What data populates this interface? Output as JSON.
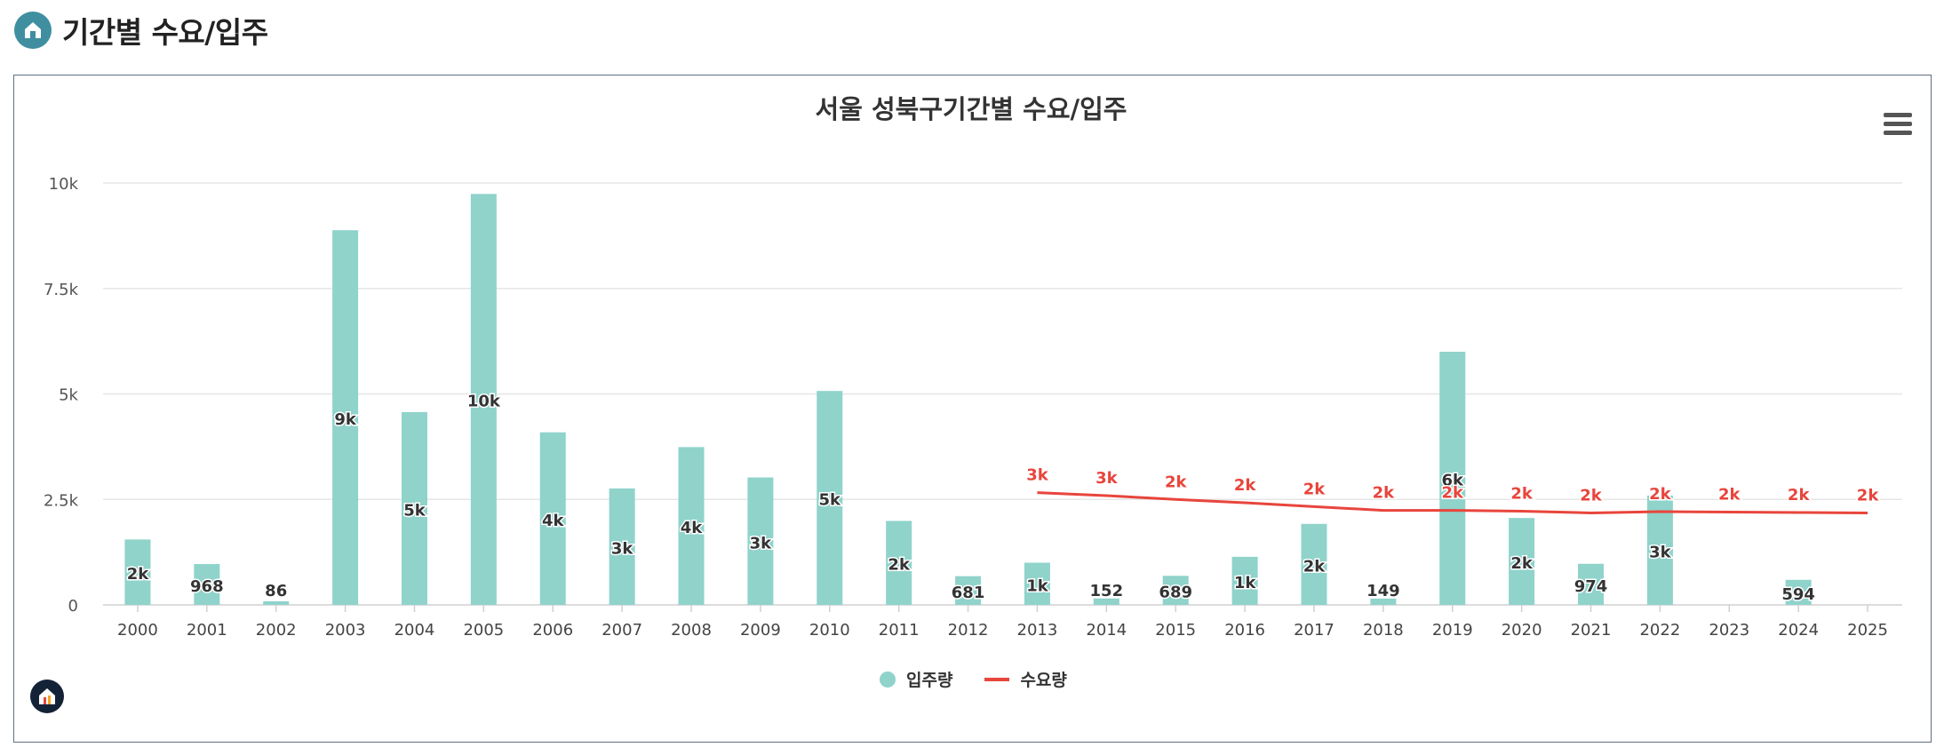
{
  "header": {
    "title": "기간별 수요/입주",
    "icon": "home-icon"
  },
  "menu": {
    "icon": "hamburger-menu-icon"
  },
  "brand": {
    "icon": "brand-logo-icon"
  },
  "colors": {
    "supply": "#8fd3cb",
    "demand": "#e8453c",
    "grid": "#e6e6e6",
    "axis": "#d0d0d0"
  },
  "chart_data": {
    "type": "bar",
    "title": "서울 성북구기간별 수요/입주",
    "categories": [
      "2000",
      "2001",
      "2002",
      "2003",
      "2004",
      "2005",
      "2006",
      "2007",
      "2008",
      "2009",
      "2010",
      "2011",
      "2012",
      "2013",
      "2014",
      "2015",
      "2016",
      "2017",
      "2018",
      "2019",
      "2020",
      "2021",
      "2022",
      "2023",
      "2024",
      "2025"
    ],
    "yticks": [
      "0",
      "2.5k",
      "5k",
      "7.5k",
      "10k"
    ],
    "ylim": [
      0,
      10000
    ],
    "grid": true,
    "legend_position": "bottom-center",
    "series": [
      {
        "name": "입주량",
        "type": "bar",
        "values": [
          1550,
          968,
          86,
          8880,
          4570,
          9740,
          4090,
          2760,
          3740,
          3020,
          5070,
          1990,
          681,
          1000,
          152,
          689,
          1140,
          1920,
          149,
          6000,
          2060,
          974,
          2590,
          null,
          594,
          null
        ],
        "labels": [
          "2k",
          "968",
          "86",
          "9k",
          "5k",
          "10k",
          "4k",
          "3k",
          "4k",
          "3k",
          "5k",
          "2k",
          "681",
          "1k",
          "152",
          "689",
          "1k",
          "2k",
          "149",
          "6k",
          "2k",
          "974",
          "3k",
          "",
          "594",
          ""
        ]
      },
      {
        "name": "수요량",
        "type": "line",
        "values": [
          null,
          null,
          null,
          null,
          null,
          null,
          null,
          null,
          null,
          null,
          null,
          null,
          null,
          2660,
          2590,
          2500,
          2420,
          2330,
          2240,
          2240,
          2220,
          2180,
          2210,
          2200,
          2190,
          2180
        ],
        "labels": [
          "",
          "",
          "",
          "",
          "",
          "",
          "",
          "",
          "",
          "",
          "",
          "",
          "",
          "3k",
          "3k",
          "2k",
          "2k",
          "2k",
          "2k",
          "2k",
          "2k",
          "2k",
          "2k",
          "2k",
          "2k",
          "2k"
        ]
      }
    ]
  }
}
